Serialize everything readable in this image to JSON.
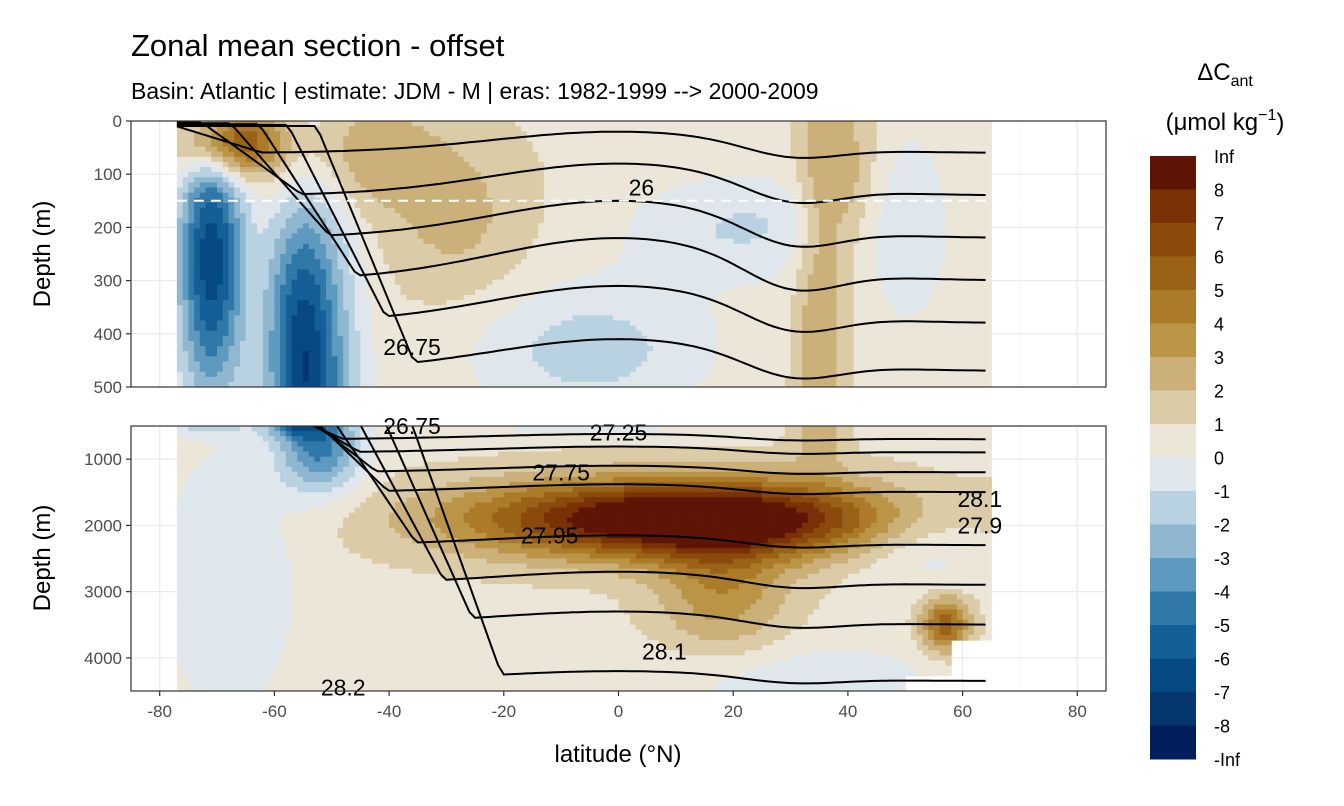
{
  "chart_data": {
    "type": "heatmap",
    "title": "Zonal mean section - offset",
    "subtitle": "Basin: Atlantic | estimate: JDM - M | eras: 1982-1999 --> 2000-2009",
    "xlabel": "latitude (°N)",
    "ylabel": "Depth (m)",
    "xlim": [
      -85,
      85
    ],
    "x_ticks": [
      -80,
      -60,
      -40,
      -20,
      0,
      20,
      40,
      60,
      80
    ],
    "panels": [
      {
        "name": "upper",
        "ylim": [
          0,
          500
        ],
        "y_ticks": [
          0,
          100,
          200,
          300,
          400,
          500
        ],
        "reference_depth_line": 150,
        "contour_labels": [
          {
            "text": "26",
            "lat": 4,
            "depth": 125
          },
          {
            "text": "26.75",
            "lat": -36,
            "depth": 425
          }
        ]
      },
      {
        "name": "lower",
        "ylim": [
          500,
          4500
        ],
        "y_ticks": [
          1000,
          2000,
          3000,
          4000
        ],
        "contour_labels": [
          {
            "text": "26.75",
            "lat": -36,
            "depth": 500
          },
          {
            "text": "27.25",
            "lat": 0,
            "depth": 600
          },
          {
            "text": "27.75",
            "lat": -10,
            "depth": 1200
          },
          {
            "text": "27.95",
            "lat": -12,
            "depth": 2150
          },
          {
            "text": "28.1",
            "lat": 8,
            "depth": 3900
          },
          {
            "text": "28.2",
            "lat": -48,
            "depth": 4450
          },
          {
            "text": "28.1",
            "lat": 63,
            "depth": 1600
          },
          {
            "text": "27.9",
            "lat": 63,
            "depth": 2000
          }
        ]
      }
    ],
    "legend": {
      "title_main": "ΔC",
      "title_sub": "ant",
      "units": "(μmol kg",
      "units_exp": "−1",
      "units_close": ")",
      "labels": [
        "Inf",
        "8",
        "7",
        "6",
        "5",
        "4",
        "3",
        "2",
        "1",
        "0",
        "-1",
        "-2",
        "-3",
        "-4",
        "-5",
        "-6",
        "-7",
        "-8",
        "-Inf"
      ],
      "colors": [
        "#5f1405",
        "#7a3105",
        "#8b4a0b",
        "#9a6216",
        "#ab7b2a",
        "#bb9547",
        "#cbb07a",
        "#dbcba6",
        "#ece6d8",
        "#dfe6ec",
        "#b9d2e1",
        "#8fb8d0",
        "#5e9abf",
        "#2f78a8",
        "#135f96",
        "#074983",
        "#063670",
        "#031e5c"
      ]
    }
  }
}
